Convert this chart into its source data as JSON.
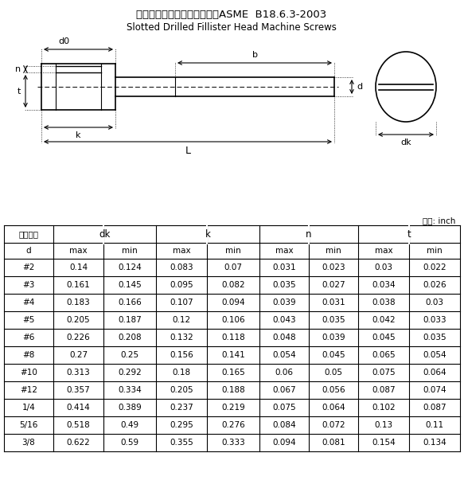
{
  "title_cn": "开槽球面圆柱头头部带孔螺钉ASME  B18.6.3-2003",
  "title_en": "Slotted Drilled Fillister Head Machine Screws",
  "unit_label": "单位: inch",
  "sub_headers": [
    "d",
    "max",
    "min",
    "max",
    "min",
    "max",
    "min",
    "max",
    "min"
  ],
  "rows": [
    [
      "#2",
      "0.14",
      "0.124",
      "0.083",
      "0.07",
      "0.031",
      "0.023",
      "0.03",
      "0.022"
    ],
    [
      "#3",
      "0.161",
      "0.145",
      "0.095",
      "0.082",
      "0.035",
      "0.027",
      "0.034",
      "0.026"
    ],
    [
      "#4",
      "0.183",
      "0.166",
      "0.107",
      "0.094",
      "0.039",
      "0.031",
      "0.038",
      "0.03"
    ],
    [
      "#5",
      "0.205",
      "0.187",
      "0.12",
      "0.106",
      "0.043",
      "0.035",
      "0.042",
      "0.033"
    ],
    [
      "#6",
      "0.226",
      "0.208",
      "0.132",
      "0.118",
      "0.048",
      "0.039",
      "0.045",
      "0.035"
    ],
    [
      "#8",
      "0.27",
      "0.25",
      "0.156",
      "0.141",
      "0.054",
      "0.045",
      "0.065",
      "0.054"
    ],
    [
      "#10",
      "0.313",
      "0.292",
      "0.18",
      "0.165",
      "0.06",
      "0.05",
      "0.075",
      "0.064"
    ],
    [
      "#12",
      "0.357",
      "0.334",
      "0.205",
      "0.188",
      "0.067",
      "0.056",
      "0.087",
      "0.074"
    ],
    [
      "1/4",
      "0.414",
      "0.389",
      "0.237",
      "0.219",
      "0.075",
      "0.064",
      "0.102",
      "0.087"
    ],
    [
      "5/16",
      "0.518",
      "0.49",
      "0.295",
      "0.276",
      "0.084",
      "0.072",
      "0.13",
      "0.11"
    ],
    [
      "3/8",
      "0.622",
      "0.59",
      "0.355",
      "0.333",
      "0.094",
      "0.081",
      "0.154",
      "0.134"
    ]
  ],
  "bg_color": "#ffffff",
  "line_color": "#000000",
  "text_color": "#000000"
}
